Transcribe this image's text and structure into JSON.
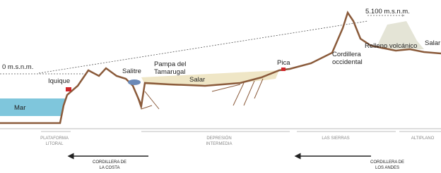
{
  "labels": {
    "elevation_top": "5.100 m.s.n.m.",
    "elevation_zero": "0 m.s.n.m.",
    "iquique": "Iquique",
    "sea": "Mar",
    "salitre": "Salitre",
    "pampa": [
      "Pampa del",
      "Tamarugal"
    ],
    "salar_1": "Salar",
    "pica": "Pica",
    "cordillera_occidental": [
      "Cordillera",
      "occidental"
    ],
    "relleno": "Relleno volcánico",
    "salar_2": "Salar"
  },
  "zones": [
    {
      "label": [
        "PLATAFORMA",
        "LITORAL"
      ]
    },
    {
      "label": [
        "DEPRESIÓN",
        "INTERMEDIA"
      ]
    },
    {
      "label": [
        "LAS SIERRAS"
      ]
    },
    {
      "label": [
        "ALTIPLANO"
      ]
    }
  ],
  "ranges": [
    {
      "label": [
        "CORDILLERA DE",
        "LA COSTA"
      ]
    },
    {
      "label": [
        "CORDILLERA DE",
        "LOS ANDES"
      ]
    }
  ]
}
